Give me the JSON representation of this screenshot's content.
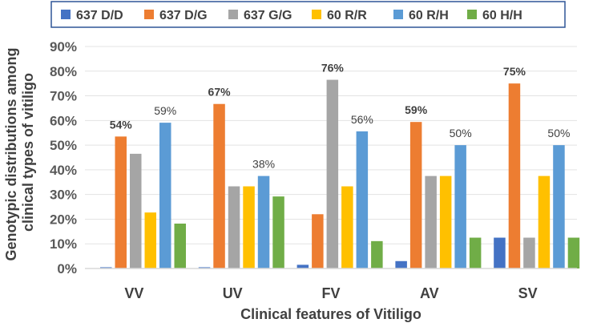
{
  "chart_data": {
    "type": "bar",
    "categories": [
      "VV",
      "UV",
      "FV",
      "AV",
      "SV"
    ],
    "series": [
      {
        "name": "637 D/D",
        "color": "#4472C4",
        "values": [
          0.5,
          0.5,
          1.5,
          3,
          12.5
        ]
      },
      {
        "name": "637 D/G",
        "color": "#ED7D31",
        "values": [
          53.5,
          66.7,
          22,
          59.4,
          75
        ]
      },
      {
        "name": "637 G/G",
        "color": "#A5A5A5",
        "values": [
          46.5,
          33.3,
          76.5,
          37.5,
          12.5
        ]
      },
      {
        "name": "60 R/R",
        "color": "#FFC000",
        "values": [
          22.7,
          33.3,
          33.3,
          37.5,
          37.5
        ]
      },
      {
        "name": "60 R/H",
        "color": "#5B9BD5",
        "values": [
          59.1,
          37.5,
          55.6,
          50,
          50
        ]
      },
      {
        "name": "60 H/H",
        "color": "#70AD47",
        "values": [
          18.2,
          29.2,
          11.1,
          12.5,
          12.5
        ]
      }
    ],
    "data_labels": [
      {
        "category": 0,
        "series": 1,
        "text": "54%",
        "bold": true
      },
      {
        "category": 0,
        "series": 4,
        "text": "59%",
        "bold": false
      },
      {
        "category": 1,
        "series": 1,
        "text": "67%",
        "bold": true
      },
      {
        "category": 1,
        "series": 4,
        "text": "38%",
        "bold": false
      },
      {
        "category": 2,
        "series": 2,
        "text": "76%",
        "bold": true
      },
      {
        "category": 2,
        "series": 4,
        "text": "56%",
        "bold": false
      },
      {
        "category": 3,
        "series": 1,
        "text": "59%",
        "bold": true
      },
      {
        "category": 3,
        "series": 4,
        "text": "50%",
        "bold": false
      },
      {
        "category": 4,
        "series": 1,
        "text": "75%",
        "bold": true
      },
      {
        "category": 4,
        "series": 4,
        "text": "50%",
        "bold": false
      }
    ],
    "yticks": [
      "0%",
      "10%",
      "20%",
      "30%",
      "40%",
      "50%",
      "60%",
      "70%",
      "80%",
      "90%"
    ],
    "ylim": [
      0,
      90
    ],
    "xlabel": "Clinical features of Vitiligo",
    "ylabel": "Genotypic distributions among clinical types of vitiligo",
    "ylabel_lines": [
      "Genotypic distributions among",
      "clinical types of vitiligo"
    ],
    "legend_position": "top"
  }
}
